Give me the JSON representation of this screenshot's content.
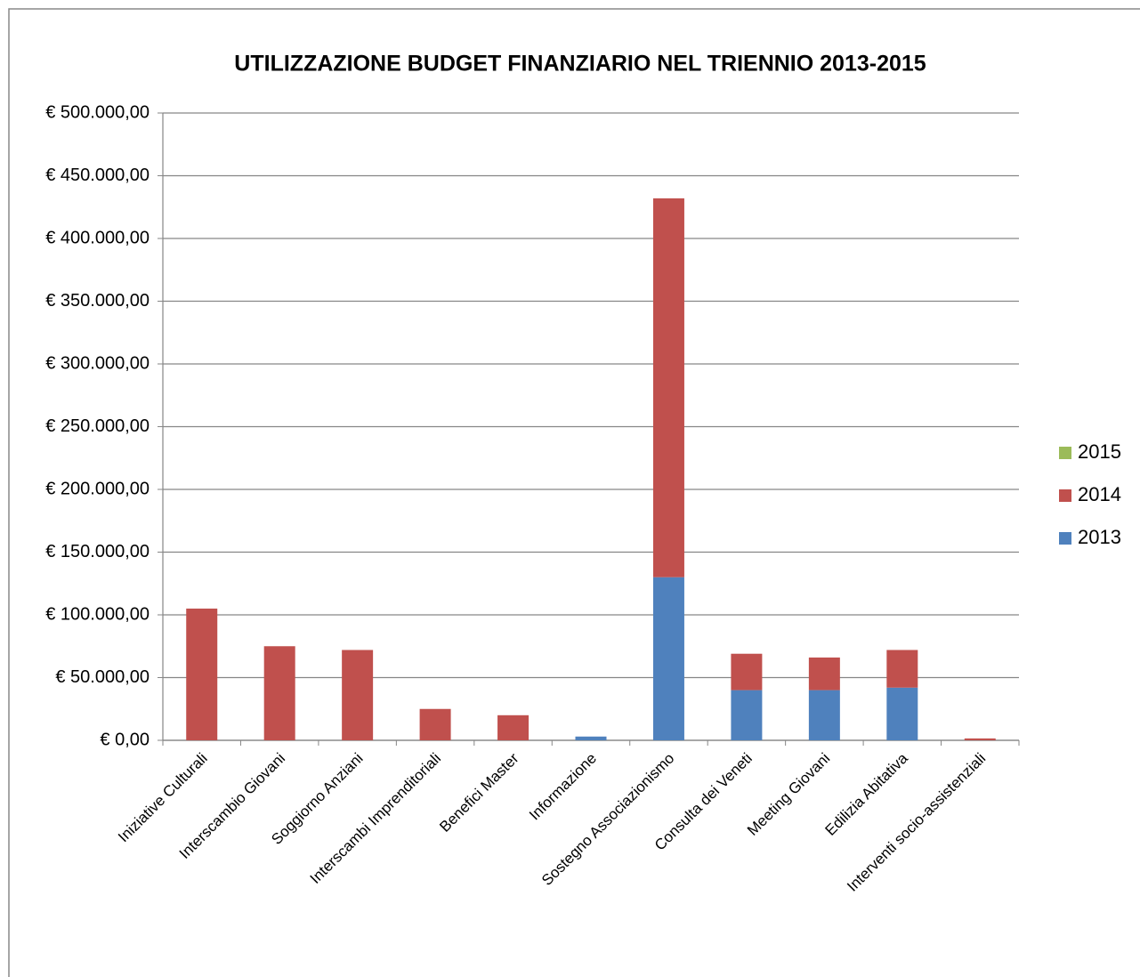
{
  "chart_data": {
    "type": "stacked_bar",
    "title": "UTILIZZAZIONE BUDGET FINANZIARIO NEL TRIENNIO 2013-2015",
    "categories": [
      "Iniziative Culturali",
      "Interscambio Giovani",
      "Soggiorno Anziani",
      "Interscambi Imprenditoriali",
      "Benefici Master",
      "Informazione",
      "Sostegno Associazionismo",
      "Consulta dei Veneti",
      "Meeting Giovani",
      "Edilizia Abitativa",
      "Interventi socio-assistenziali"
    ],
    "series": [
      {
        "name": "2013",
        "color": "#4f81bd",
        "values": [
          0,
          0,
          0,
          0,
          0,
          3000,
          130000,
          40000,
          40000,
          42000,
          0
        ]
      },
      {
        "name": "2014",
        "color": "#c0504d",
        "values": [
          105000,
          75000,
          72000,
          25000,
          20000,
          0,
          302000,
          29000,
          26000,
          30000,
          1500
        ]
      },
      {
        "name": "2015",
        "color": "#9bbb59",
        "values": [
          0,
          0,
          0,
          0,
          0,
          0,
          0,
          0,
          0,
          0,
          0
        ]
      }
    ],
    "ylim": [
      0,
      500000
    ],
    "yticks": [
      {
        "value": 0,
        "label": "€ 0,00"
      },
      {
        "value": 50000,
        "label": "€ 50.000,00"
      },
      {
        "value": 100000,
        "label": "€ 100.000,00"
      },
      {
        "value": 150000,
        "label": "€ 150.000,00"
      },
      {
        "value": 200000,
        "label": "€ 200.000,00"
      },
      {
        "value": 250000,
        "label": "€ 250.000,00"
      },
      {
        "value": 300000,
        "label": "€ 300.000,00"
      },
      {
        "value": 350000,
        "label": "€ 350.000,00"
      },
      {
        "value": 400000,
        "label": "€ 400.000,00"
      },
      {
        "value": 450000,
        "label": "€ 450.000,00"
      },
      {
        "value": 500000,
        "label": "€ 500.000,00"
      }
    ],
    "grid": true,
    "legend": "right"
  }
}
